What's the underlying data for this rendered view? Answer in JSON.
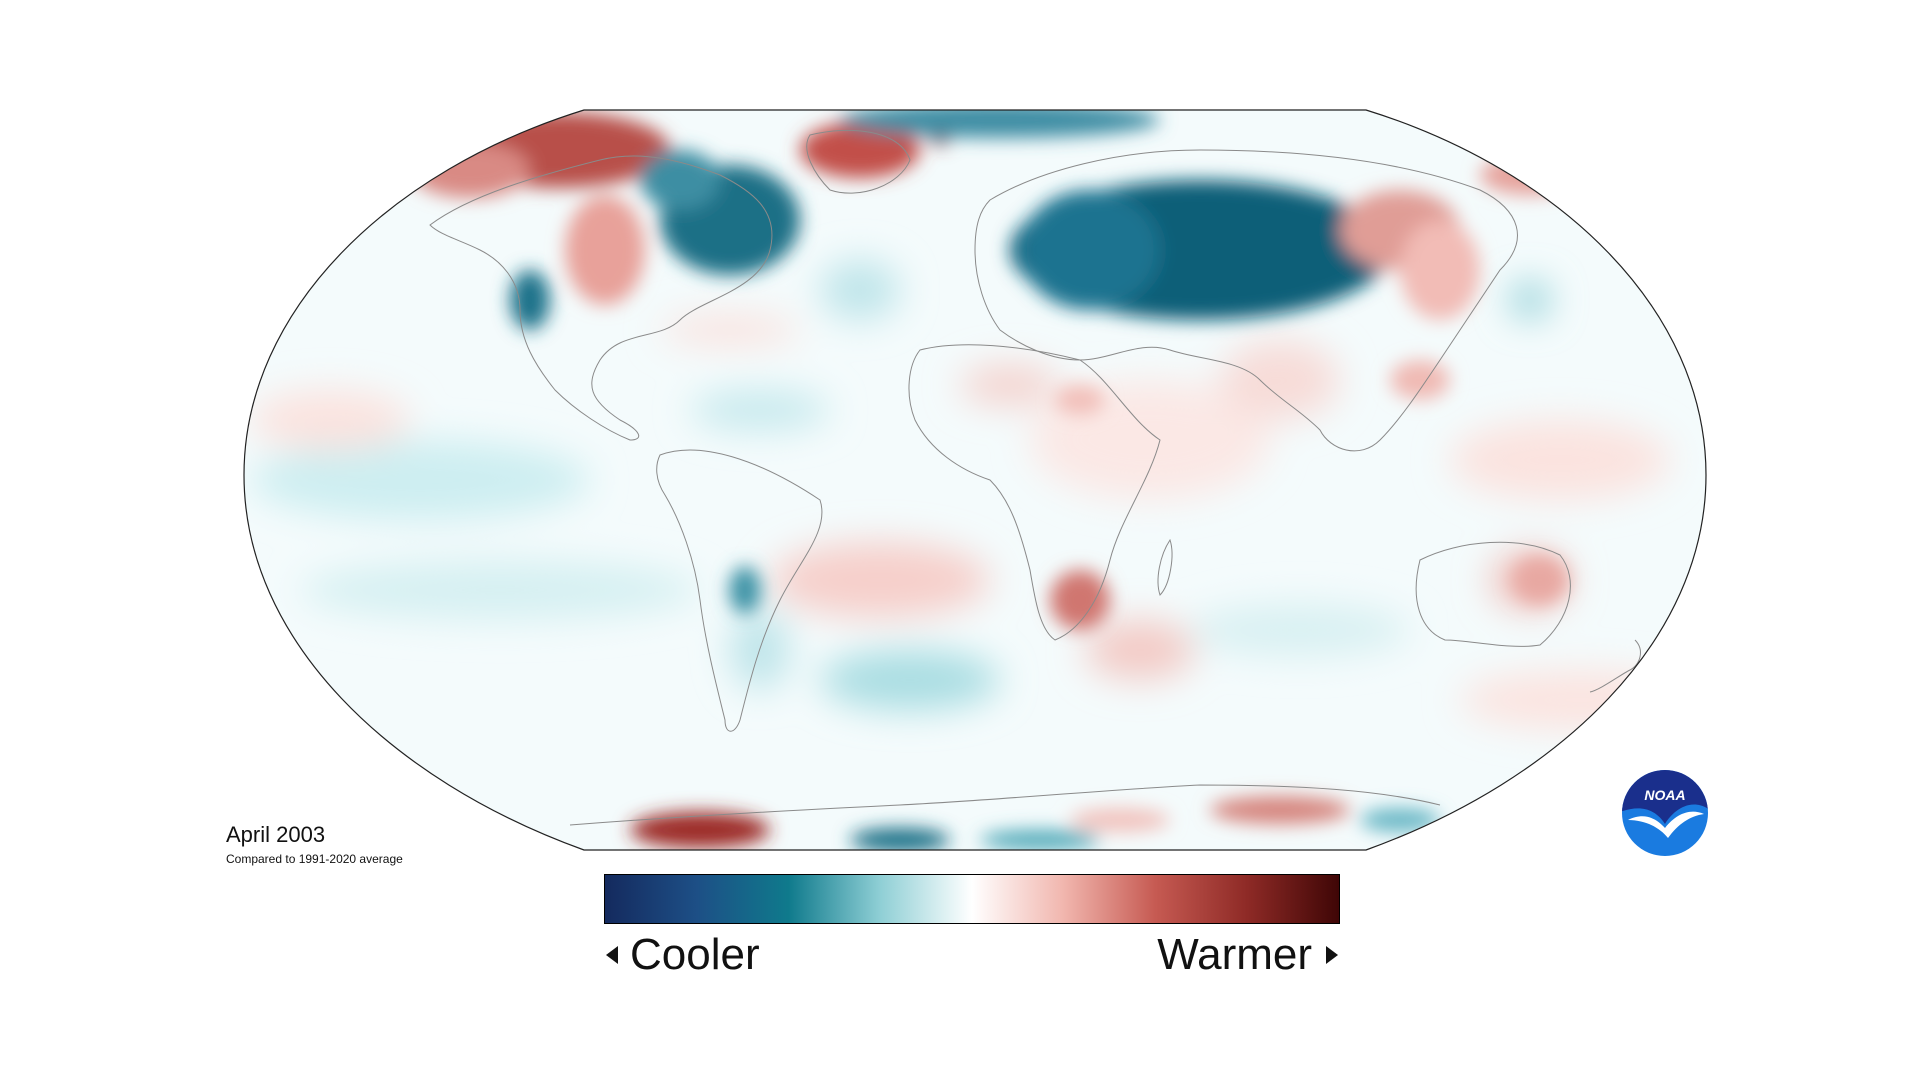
{
  "map": {
    "date": "April 2003",
    "baseline": "Compared to 1991-2020 average",
    "projection": "robinson",
    "colors": {
      "deep_cool": "#1a2f6b",
      "cool": "#0e6f85",
      "light_cool": "#bfe6ea",
      "neutral": "#ffffff",
      "light_warm": "#f2c9c4",
      "warm": "#c0534d",
      "deep_warm": "#4a0a0a"
    }
  },
  "colorbar": {
    "left_label": "Cooler",
    "right_label": "Warmer",
    "stops": [
      "#142a5e",
      "#1d4f86",
      "#0f7a8c",
      "#8fcfd5",
      "#ffffff",
      "#f1b6ae",
      "#c65a52",
      "#8e2a26",
      "#3f0606"
    ]
  },
  "logo": {
    "text": "NOAA",
    "icon": "noaa-logo-icon",
    "color_top": "#1a2f8c",
    "color_bottom": "#1a7be0"
  }
}
